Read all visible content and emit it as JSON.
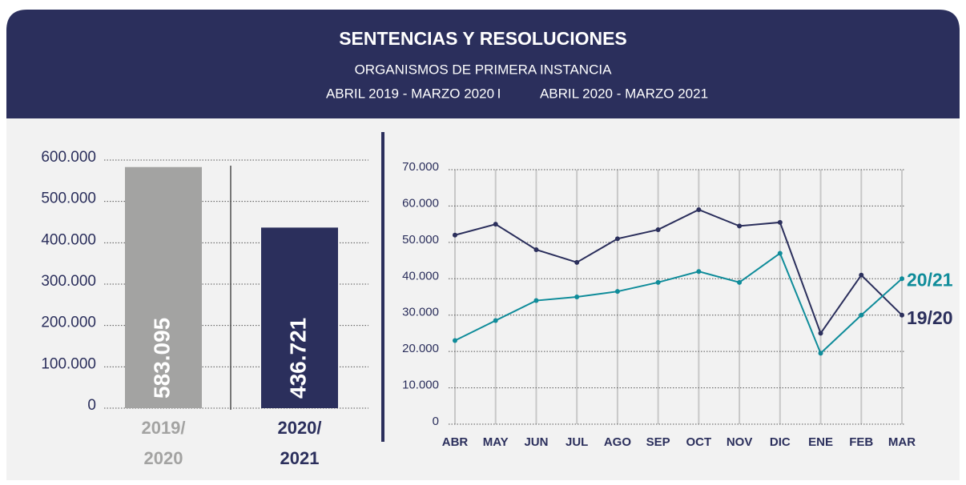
{
  "header": {
    "title": "SENTENCIAS Y RESOLUCIONES",
    "subtitle": "ORGANISMOS DE PRIMERA INSTANCIA",
    "period_1": "ABRIL 2019 - MARZO 2020",
    "separator": "I",
    "period_2": "ABRIL 2020 - MARZO 2021"
  },
  "chart_data": [
    {
      "type": "bar",
      "categories": [
        [
          "2019/",
          "2020"
        ],
        [
          "2020/",
          "2021"
        ]
      ],
      "values": [
        583095,
        436721
      ],
      "value_labels": [
        "583.095",
        "436.721"
      ],
      "colors": [
        "#a3a3a2",
        "#2b2f5c"
      ],
      "ylim": [
        0,
        600000
      ],
      "yticks": [
        0,
        {
          "value": 100000,
          "label": "100.000"
        },
        {
          "value": 200000,
          "label": "200.000"
        },
        {
          "value": 300000,
          "label": "300.000"
        },
        {
          "value": 400000,
          "label": "400.000"
        },
        {
          "value": 500000,
          "label": "500.000"
        },
        {
          "value": 600000,
          "label": "600.000"
        }
      ],
      "grid": true
    },
    {
      "type": "line",
      "categories": [
        "ABR",
        "MAY",
        "JUN",
        "JUL",
        "AGO",
        "SEP",
        "OCT",
        "NOV",
        "DIC",
        "ENE",
        "FEB",
        "MAR"
      ],
      "series": [
        {
          "name": "19/20",
          "color": "#2b2f5c",
          "values": [
            52000,
            55000,
            48000,
            44500,
            51000,
            53500,
            59000,
            54500,
            55500,
            25000,
            41000,
            30000
          ]
        },
        {
          "name": "20/21",
          "color": "#0f8c9a",
          "values": [
            23000,
            28500,
            34000,
            35000,
            36500,
            39000,
            42000,
            39000,
            47000,
            19500,
            30000,
            40000
          ]
        }
      ],
      "ylim": [
        0,
        70000
      ],
      "yticks": [
        0,
        {
          "value": 10000,
          "label": "10.000"
        },
        {
          "value": 20000,
          "label": "20.000"
        },
        {
          "value": 30000,
          "label": "30.000"
        },
        {
          "value": 40000,
          "label": "40.000"
        },
        {
          "value": 50000,
          "label": "50.000"
        },
        {
          "value": 60000,
          "label": "60.000"
        },
        {
          "value": 70000,
          "label": "70.000"
        }
      ],
      "grid": true
    }
  ]
}
